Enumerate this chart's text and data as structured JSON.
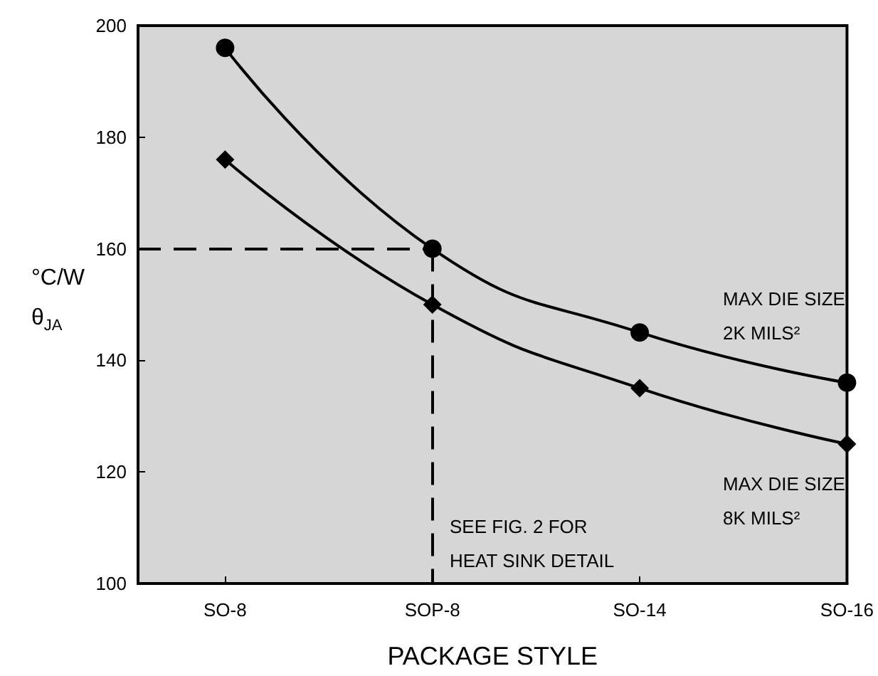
{
  "chart_data": {
    "type": "line",
    "xlabel": "PACKAGE STYLE",
    "ylabel": "°C/W\nθ$_{JA}$",
    "categories": [
      "SO-8",
      "SOP-8",
      "SO-14",
      "SO-16"
    ],
    "series": [
      {
        "color": "#000000",
        "marker": "circle",
        "values": [
          196,
          160,
          145,
          136
        ]
      },
      {
        "color": "#000000",
        "marker": "diamond",
        "values": [
          176,
          150,
          135,
          125
        ]
      }
    ],
    "ylim": [
      100,
      200
    ],
    "yticks": [
      100,
      120,
      140,
      160,
      180,
      200
    ],
    "line_style": "solid",
    "ref_lines": [
      {
        "axis": "y",
        "value": 160,
        "line_style": "dashed",
        "color": "#000000"
      },
      {
        "axis": "x",
        "value": "SOP-8",
        "line_style": "dashed",
        "color": "#000000"
      }
    ],
    "annotations": [
      "MAX DIE SIZE\n2K MILS²",
      "MAX DIE SIZE\n8K MILS²",
      "SEE FIG. 2 FOR\nHEAT SINK DETAIL"
    ]
  }
}
